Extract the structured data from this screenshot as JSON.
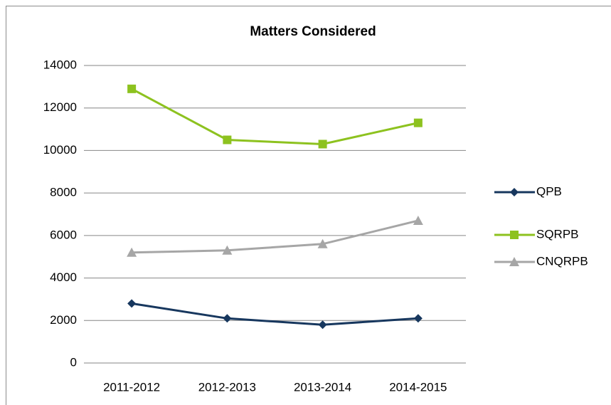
{
  "chart_data": {
    "type": "line",
    "title": "Matters Considered",
    "categories": [
      "2011-2012",
      "2012-2013",
      "2013-2014",
      "2014-2015"
    ],
    "series": [
      {
        "name": "QPB",
        "color": "#17375e",
        "marker": "diamond",
        "values": [
          2800,
          2100,
          1800,
          2100
        ]
      },
      {
        "name": "SQRPB",
        "color": "#8dc21f",
        "marker": "square",
        "values": [
          12900,
          10500,
          10300,
          11300
        ]
      },
      {
        "name": "CNQRPB",
        "color": "#a6a6a6",
        "marker": "triangle",
        "values": [
          5200,
          5300,
          5600,
          6700
        ]
      }
    ],
    "ylim": [
      0,
      14000
    ],
    "yticks": [
      0,
      2000,
      4000,
      6000,
      8000,
      10000,
      12000,
      14000
    ],
    "grid": true,
    "legend": "right"
  }
}
